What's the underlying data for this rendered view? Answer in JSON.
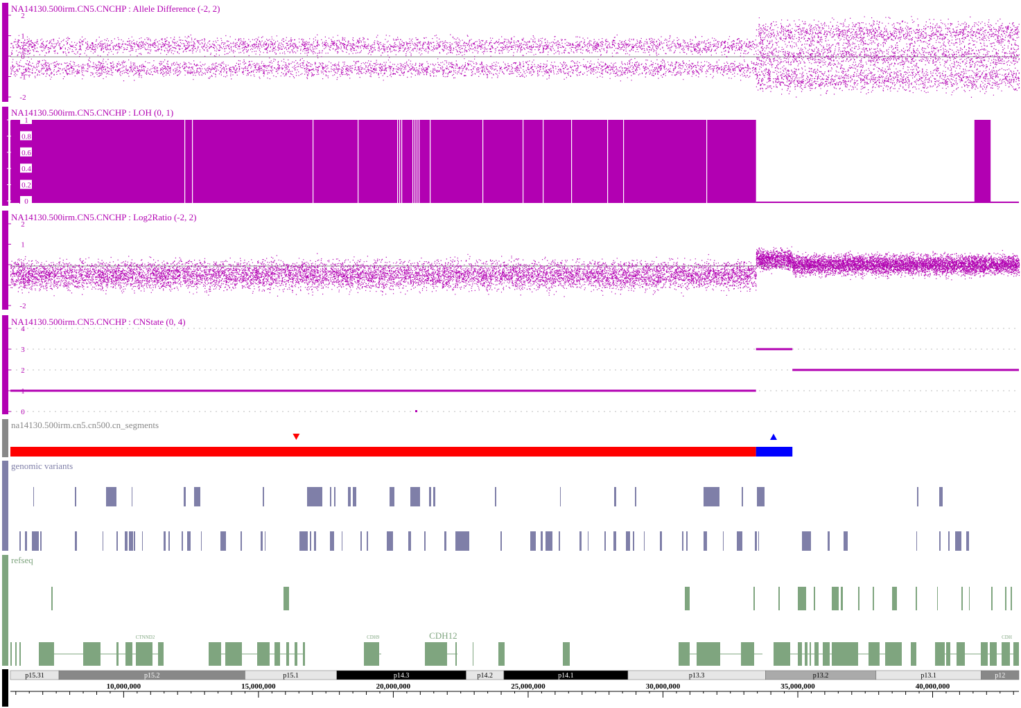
{
  "colors": {
    "magenta": "#b200b2",
    "segment_loss": "#ff0000",
    "segment_gain": "#0000ff",
    "variant": "#7f7fa8",
    "refseq": "#7fa57f",
    "gray_handle": "#888888"
  },
  "genome_range": [
    5800000,
    43200000
  ],
  "tracks": {
    "allele_difference": {
      "title": "NA14130.500irm.CN5.CNCHP : Allele Difference (-2, 2)",
      "ticks": [
        "-2",
        "-1",
        "0",
        "1",
        "2"
      ],
      "breakpoint_position": 33450000
    },
    "loh": {
      "title": "NA14130.500irm.CN5.CNCHP : LOH (0, 1)",
      "ticks": [
        "0",
        "0.2",
        "0.4",
        "0.6",
        "0.8",
        "1"
      ],
      "filled_intervals": [
        [
          5800000,
          33450000
        ],
        [
          41550000,
          42150000
        ]
      ]
    },
    "log2ratio": {
      "title": "NA14130.500irm.CN5.CNCHP : Log2Ratio (-2, 2)",
      "ticks": [
        "-2",
        "-1",
        "0",
        "1",
        "2"
      ]
    },
    "cnstate": {
      "title": "NA14130.500irm.CN5.CNCHP : CNState (0, 4)",
      "ticks": [
        "0",
        "1",
        "2",
        "3",
        "4"
      ],
      "segments": [
        {
          "start": 5800000,
          "end": 33450000,
          "state": 1
        },
        {
          "start": 33450000,
          "end": 34800000,
          "state": 3
        },
        {
          "start": 34800000,
          "end": 43200000,
          "state": 2
        }
      ]
    },
    "cn_segments": {
      "title": "na14130.500irm.cn5.cn500.cn_segments",
      "segments": [
        {
          "start": 5800000,
          "end": 33450000,
          "type": "loss"
        },
        {
          "start": 33450000,
          "end": 34800000,
          "type": "gain"
        }
      ],
      "markers": [
        {
          "pos": 16400000,
          "type": "loss"
        },
        {
          "pos": 34100000,
          "type": "gain"
        }
      ]
    },
    "genomic_variants": {
      "title": "genomic variants"
    },
    "refseq": {
      "title": "refseq",
      "gene_labels": [
        {
          "text": "CTNND2",
          "pos": 10800000,
          "small": true
        },
        {
          "text": "CDH12",
          "pos": 21850000,
          "small": false
        },
        {
          "text": "CDH9",
          "pos": 19250000,
          "small": true
        },
        {
          "text": "CDH",
          "pos": 42750000,
          "small": true
        }
      ]
    }
  },
  "ideogram": {
    "bands": [
      {
        "name": "p15.31",
        "start": 5800000,
        "end": 7600000,
        "shade": "#e6e6e6"
      },
      {
        "name": "p15.2",
        "start": 7600000,
        "end": 14500000,
        "shade": "#888888"
      },
      {
        "name": "p15.1",
        "start": 14500000,
        "end": 17900000,
        "shade": "#e6e6e6"
      },
      {
        "name": "p14.3",
        "start": 17900000,
        "end": 22700000,
        "shade": "#000000"
      },
      {
        "name": "p14.2",
        "start": 22700000,
        "end": 24100000,
        "shade": "#e6e6e6"
      },
      {
        "name": "p14.1",
        "start": 24100000,
        "end": 28700000,
        "shade": "#000000"
      },
      {
        "name": "p13.3",
        "start": 28700000,
        "end": 33800000,
        "shade": "#e6e6e6"
      },
      {
        "name": "p13.2",
        "start": 33800000,
        "end": 37900000,
        "shade": "#aaaaaa"
      },
      {
        "name": "p13.1",
        "start": 37900000,
        "end": 41800000,
        "shade": "#e6e6e6"
      },
      {
        "name": "p12",
        "start": 41800000,
        "end": 43200000,
        "shade": "#888888"
      }
    ],
    "ruler_labels": [
      "10,000,000",
      "15,000,000",
      "20,000,000",
      "25,000,000",
      "30,000,000",
      "35,000,000",
      "40,000,000"
    ],
    "ruler_positions": [
      10000000,
      15000000,
      20000000,
      25000000,
      30000000,
      35000000,
      40000000
    ]
  }
}
